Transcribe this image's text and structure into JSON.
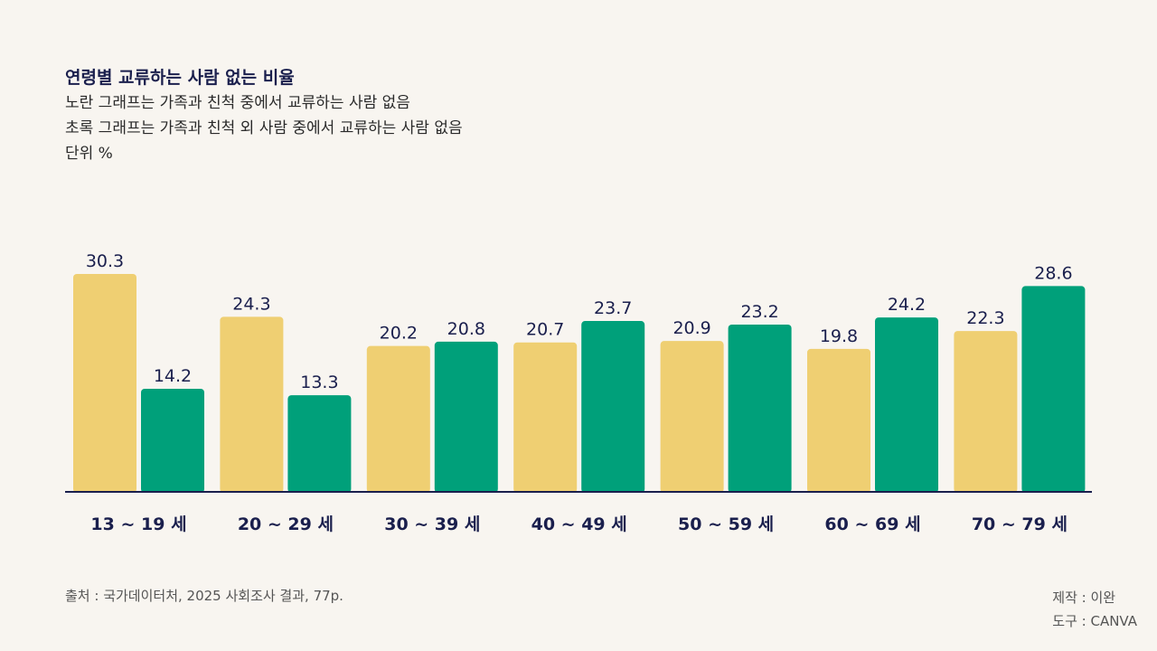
{
  "header": {
    "title": "연령별 교류하는 사람 없는 비율",
    "subtitle_lines": [
      "노란 그래프는 가족과 친척 중에서 교류하는 사람 없음",
      "초록 그래프는 가족과 친척 외 사람 중에서 교류하는 사람 없음",
      "단위 %"
    ]
  },
  "chart_data": {
    "type": "bar",
    "categories": [
      "13 ~ 19 세",
      "20 ~ 29 세",
      "30 ~ 39 세",
      "40 ~ 49 세",
      "50 ~ 59 세",
      "60 ~ 69 세",
      "70 ~ 79 세"
    ],
    "series": [
      {
        "color": "#efcf72",
        "values": [
          30.3,
          24.3,
          20.2,
          20.7,
          20.9,
          19.8,
          22.3
        ],
        "labels": [
          "30.3",
          "24.3",
          "20.2",
          "20.7",
          "20.9",
          "19.8",
          "22.3"
        ]
      },
      {
        "color": "#00a07a",
        "values": [
          14.2,
          13.3,
          20.8,
          23.7,
          23.2,
          24.2,
          28.6
        ],
        "labels": [
          "14.2",
          "13.3",
          "20.8",
          "23.7",
          "23.2",
          "24.2",
          "28.6"
        ]
      }
    ],
    "ylim": [
      0,
      30.3
    ],
    "grid": false,
    "legend": "none"
  },
  "colors": {
    "background": "#f8f5f0",
    "text": "#1a1f4d",
    "axis": "#1a1f4d"
  },
  "footer": {
    "source": "출처 : 국가데이터처, 2025 사회조사 결과, 77p.",
    "maker": "제작 : 이완",
    "tool": "도구 : CANVA"
  }
}
